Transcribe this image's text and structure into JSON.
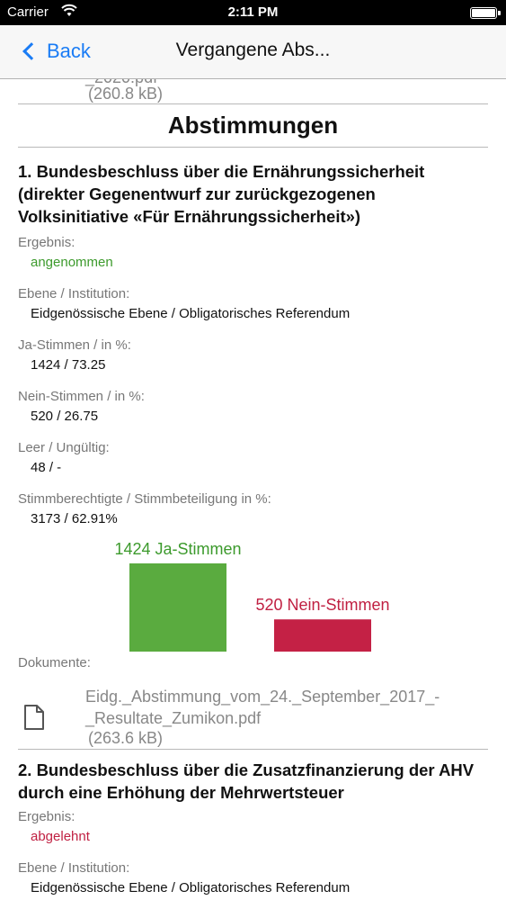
{
  "status_bar": {
    "carrier": "Carrier",
    "time": "2:11 PM"
  },
  "nav": {
    "back_label": "Back",
    "title": "Vergangene Abs..."
  },
  "previous_document": {
    "name_fragment": "_2020.pdf",
    "size": "(260.8 kB)"
  },
  "section_title": "Abstimmungen",
  "votes": [
    {
      "title": "1. Bundesbeschluss über die Ernährungssicherheit (direkter Gegenentwurf zur zurückgezogenen Volksinitiative «Für Ernährungssicherheit»)",
      "result_label": "Ergebnis:",
      "result": "angenommen",
      "level_label": "Ebene / Institution:",
      "level": "Eidgenössische Ebene / Obligatorisches Referendum",
      "yes_label": "Ja-Stimmen / in %:",
      "yes": "1424 / 73.25",
      "no_label": "Nein-Stimmen / in %:",
      "no": "520 / 26.75",
      "blank_label": "Leer / Ungültig:",
      "blank": "48 / -",
      "eligible_label": "Stimmberechtigte / Stimmbeteiligung in %:",
      "eligible": "3173 / 62.91%",
      "documents_label": "Dokumente:",
      "document_name": "Eidg._Abstimmung_vom_24._September_2017_-_Resultate_Zumikon.pdf",
      "document_size": "(263.6 kB)"
    },
    {
      "title": "2. Bundesbeschluss über die Zusatzfinanzierung der AHV durch eine Erhöhung der Mehrwertsteuer",
      "result_label": "Ergebnis:",
      "result": "abgelehnt",
      "level_label": "Ebene / Institution:",
      "level": "Eidgenössische Ebene / Obligatorisches Referendum"
    }
  ],
  "chart_data": {
    "type": "bar",
    "categories": [
      "Ja-Stimmen",
      "Nein-Stimmen"
    ],
    "values": [
      1424,
      520
    ],
    "data_labels": [
      "1424 Ja-Stimmen",
      "520 Nein-Stimmen"
    ],
    "colors": [
      "#5aab3f",
      "#c42145"
    ]
  },
  "colors": {
    "accent": "#1a7cf5",
    "accepted": "#3c9a2c",
    "rejected": "#c02042"
  }
}
